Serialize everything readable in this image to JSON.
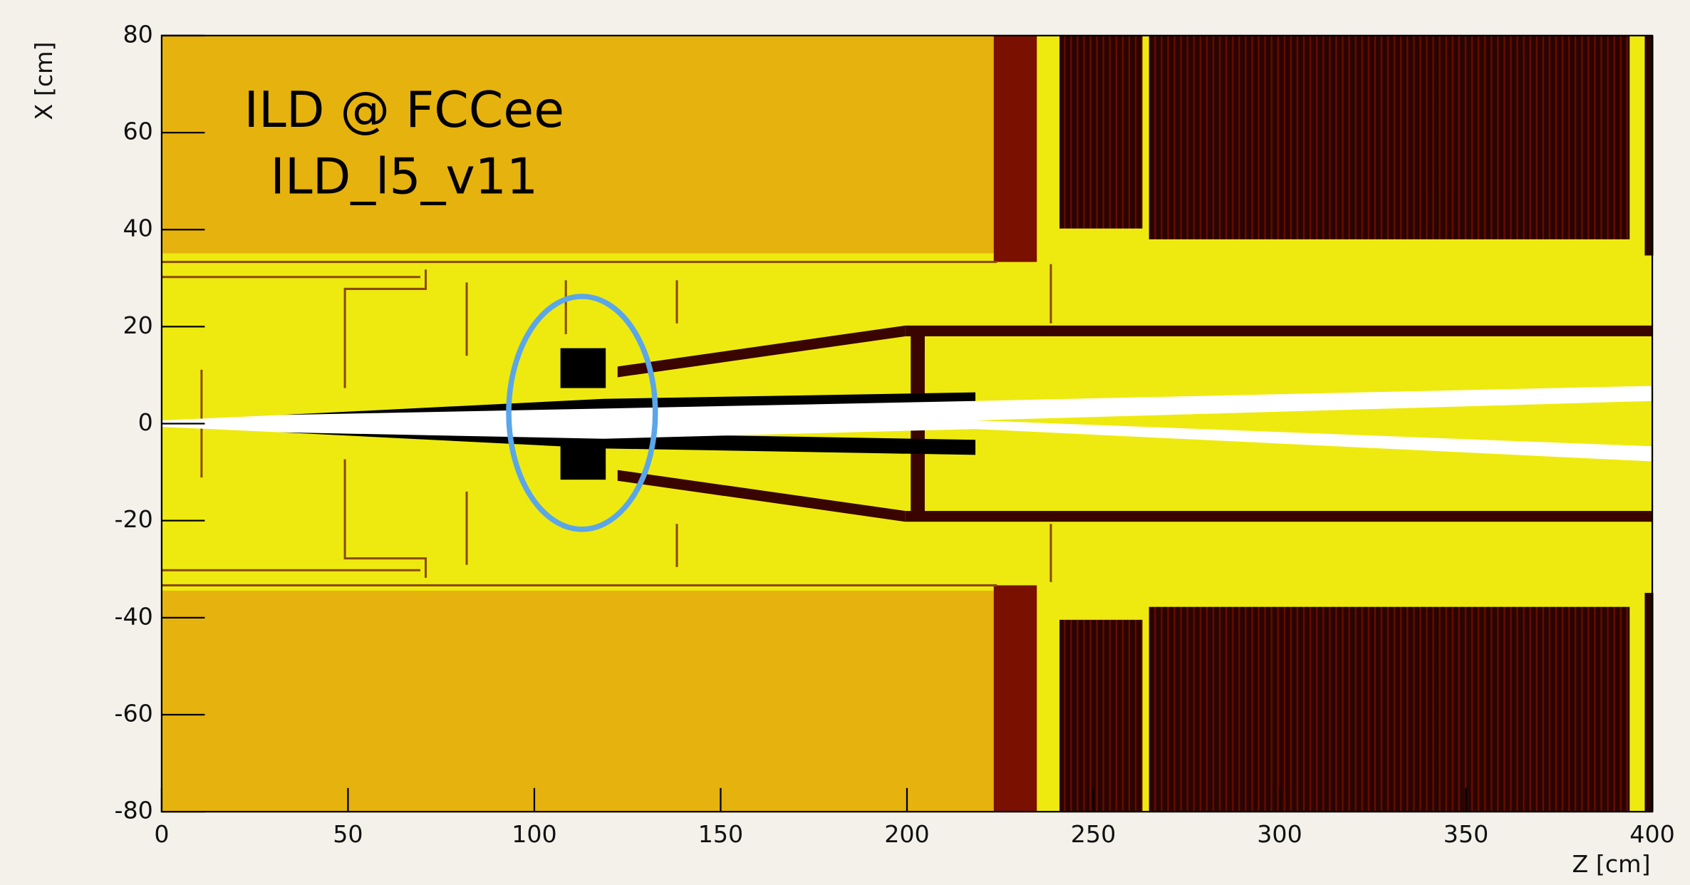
{
  "chart_data": {
    "type": "geometry",
    "annotations": [
      "ILD @ FCCee",
      "ILD_l5_v11"
    ],
    "x_label": "Z [cm]",
    "y_label": "X [cm]",
    "xlim": [
      0,
      400
    ],
    "ylim": [
      -80,
      80
    ],
    "xticks": [
      0,
      50,
      100,
      150,
      200,
      250,
      300,
      350,
      400
    ],
    "yticks": [
      -80,
      -60,
      -40,
      -20,
      0,
      20,
      40,
      60,
      80
    ]
  }
}
